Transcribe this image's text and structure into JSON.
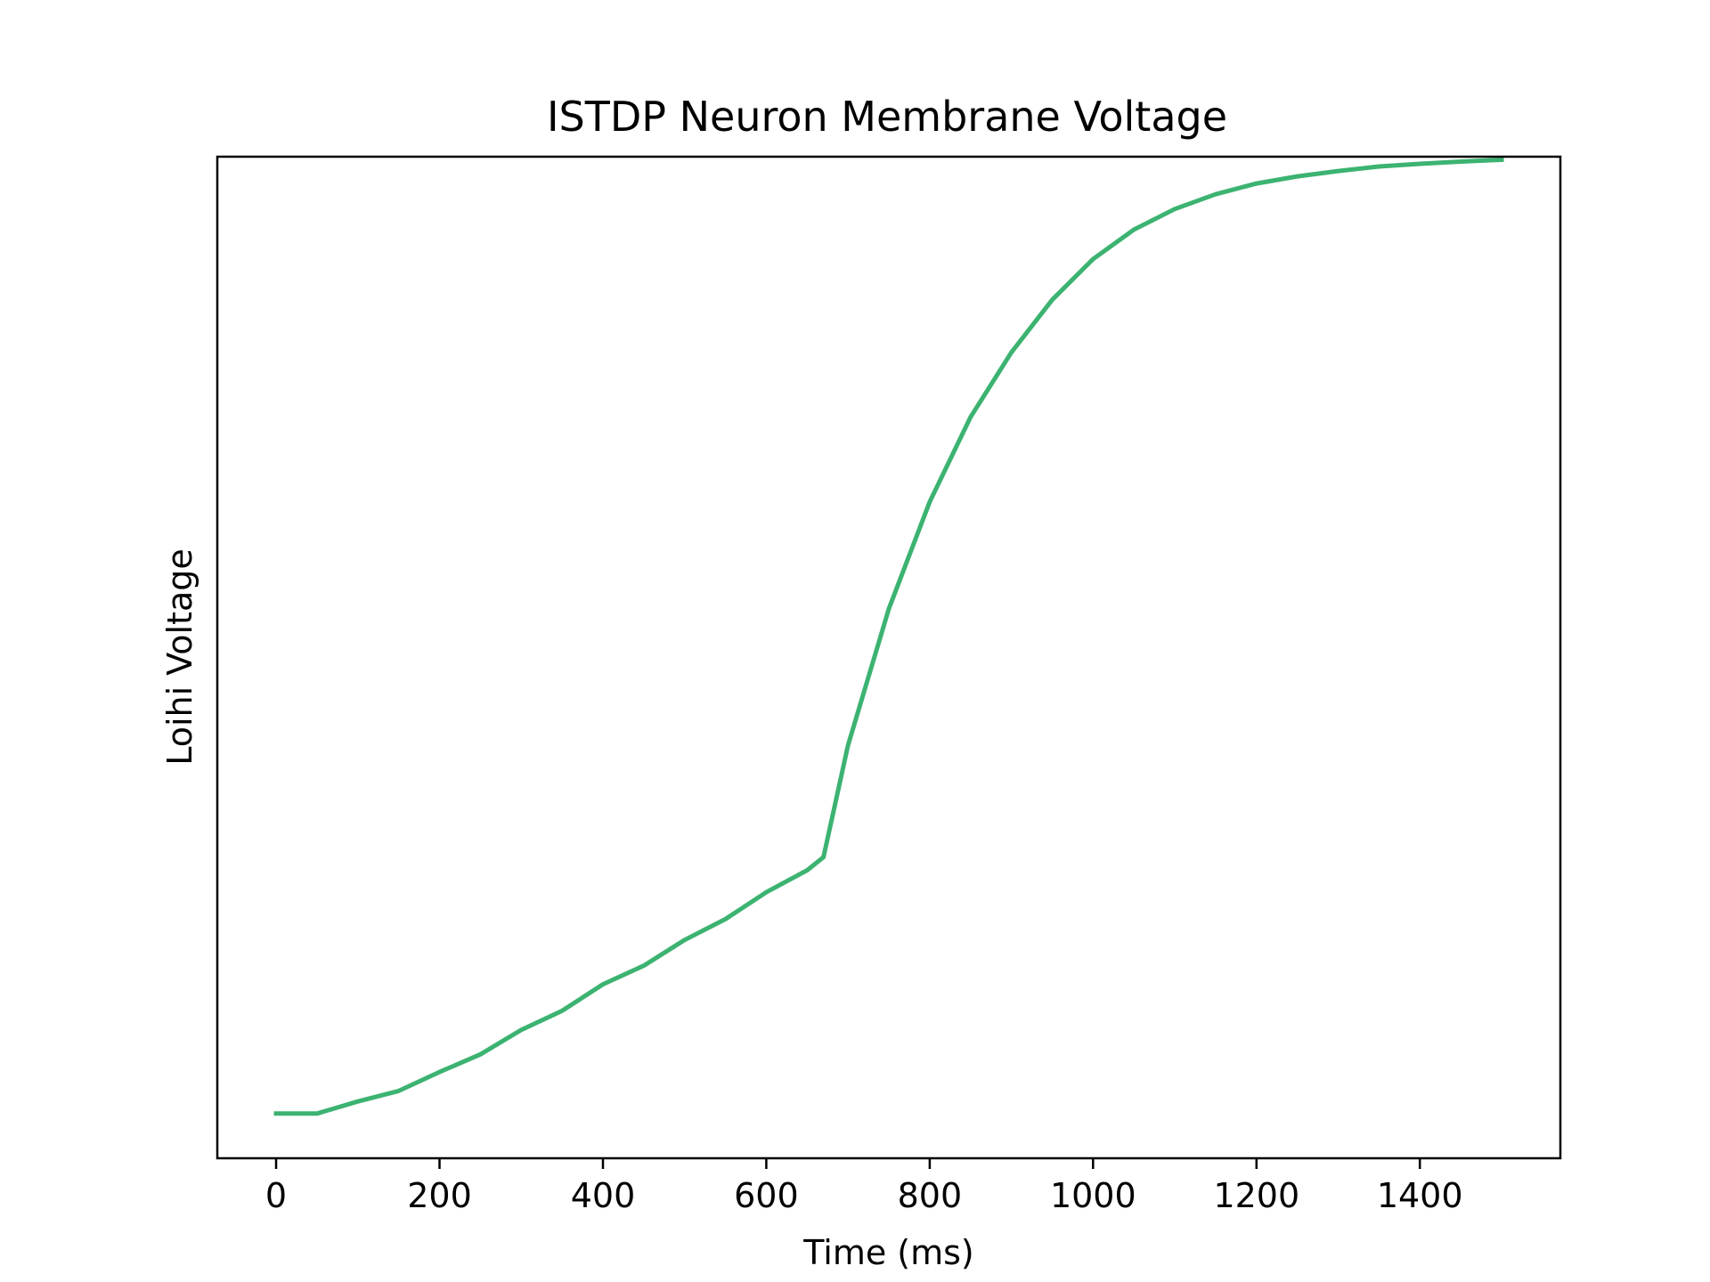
{
  "chart_data": {
    "type": "line",
    "title": "ISTDP Neuron Membrane Voltage",
    "xlabel": "Time (ms)",
    "ylabel": "Loihi Voltage",
    "xlim": [
      -72,
      1572
    ],
    "ylim": [
      -0.05,
      1.07
    ],
    "xticks": [
      0,
      200,
      400,
      600,
      800,
      1000,
      1200,
      1400
    ],
    "yticks_shown": false,
    "grid": false,
    "legend": "none",
    "series": [
      {
        "color": "#3cb371",
        "x": [
          0,
          50,
          100,
          150,
          200,
          250,
          300,
          350,
          400,
          450,
          500,
          550,
          600,
          650,
          670,
          700,
          750,
          800,
          850,
          900,
          950,
          1000,
          1050,
          1100,
          1150,
          1200,
          1250,
          1300,
          1350,
          1400,
          1450,
          1500
        ],
        "y": [
          0.0,
          0.0,
          0.0135,
          0.0253,
          0.0465,
          0.0662,
          0.0935,
          0.1149,
          0.1445,
          0.1653,
          0.1941,
          0.2174,
          0.2475,
          0.2721,
          0.2867,
          0.4115,
          0.5645,
          0.684,
          0.7787,
          0.8512,
          0.91,
          0.9555,
          0.9885,
          1.0115,
          1.028,
          1.04,
          1.048,
          1.054,
          1.059,
          1.062,
          1.0645,
          1.0665
        ]
      }
    ]
  }
}
